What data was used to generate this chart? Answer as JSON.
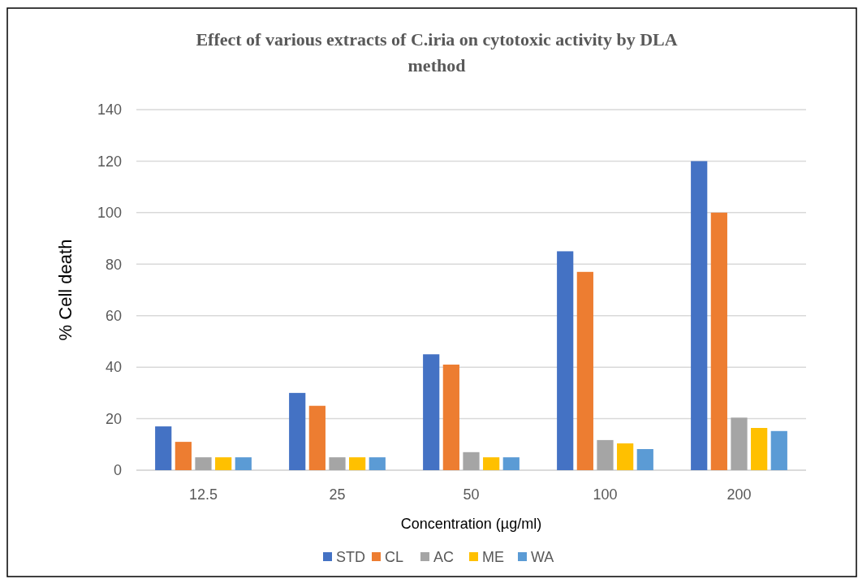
{
  "chart_data": {
    "type": "bar",
    "title": "Effect of various extracts of C.iria on cytotoxic activity by DLA method",
    "xlabel": "Concentration (µg/ml)",
    "ylabel": "% Cell death",
    "categories": [
      "12.5",
      "25",
      "50",
      "100",
      "200"
    ],
    "series": [
      {
        "name": "STD",
        "color": "#4472c4",
        "values": [
          17,
          30,
          45,
          85,
          120
        ]
      },
      {
        "name": "CL",
        "color": "#ed7d31",
        "values": [
          11,
          25,
          41,
          77,
          100
        ]
      },
      {
        "name": "AC",
        "color": "#a5a5a5",
        "values": [
          5,
          5,
          7,
          11.7,
          20.4
        ]
      },
      {
        "name": "ME",
        "color": "#ffc000",
        "values": [
          5,
          5,
          5,
          10.4,
          16.4
        ]
      },
      {
        "name": "WA",
        "color": "#5b9bd5",
        "values": [
          5,
          5,
          5,
          8.2,
          15.2
        ]
      }
    ],
    "ylim": [
      0,
      140
    ],
    "yticks": [
      0,
      20,
      40,
      60,
      80,
      100,
      120,
      140
    ],
    "grid": "y",
    "legend": "bottom"
  }
}
